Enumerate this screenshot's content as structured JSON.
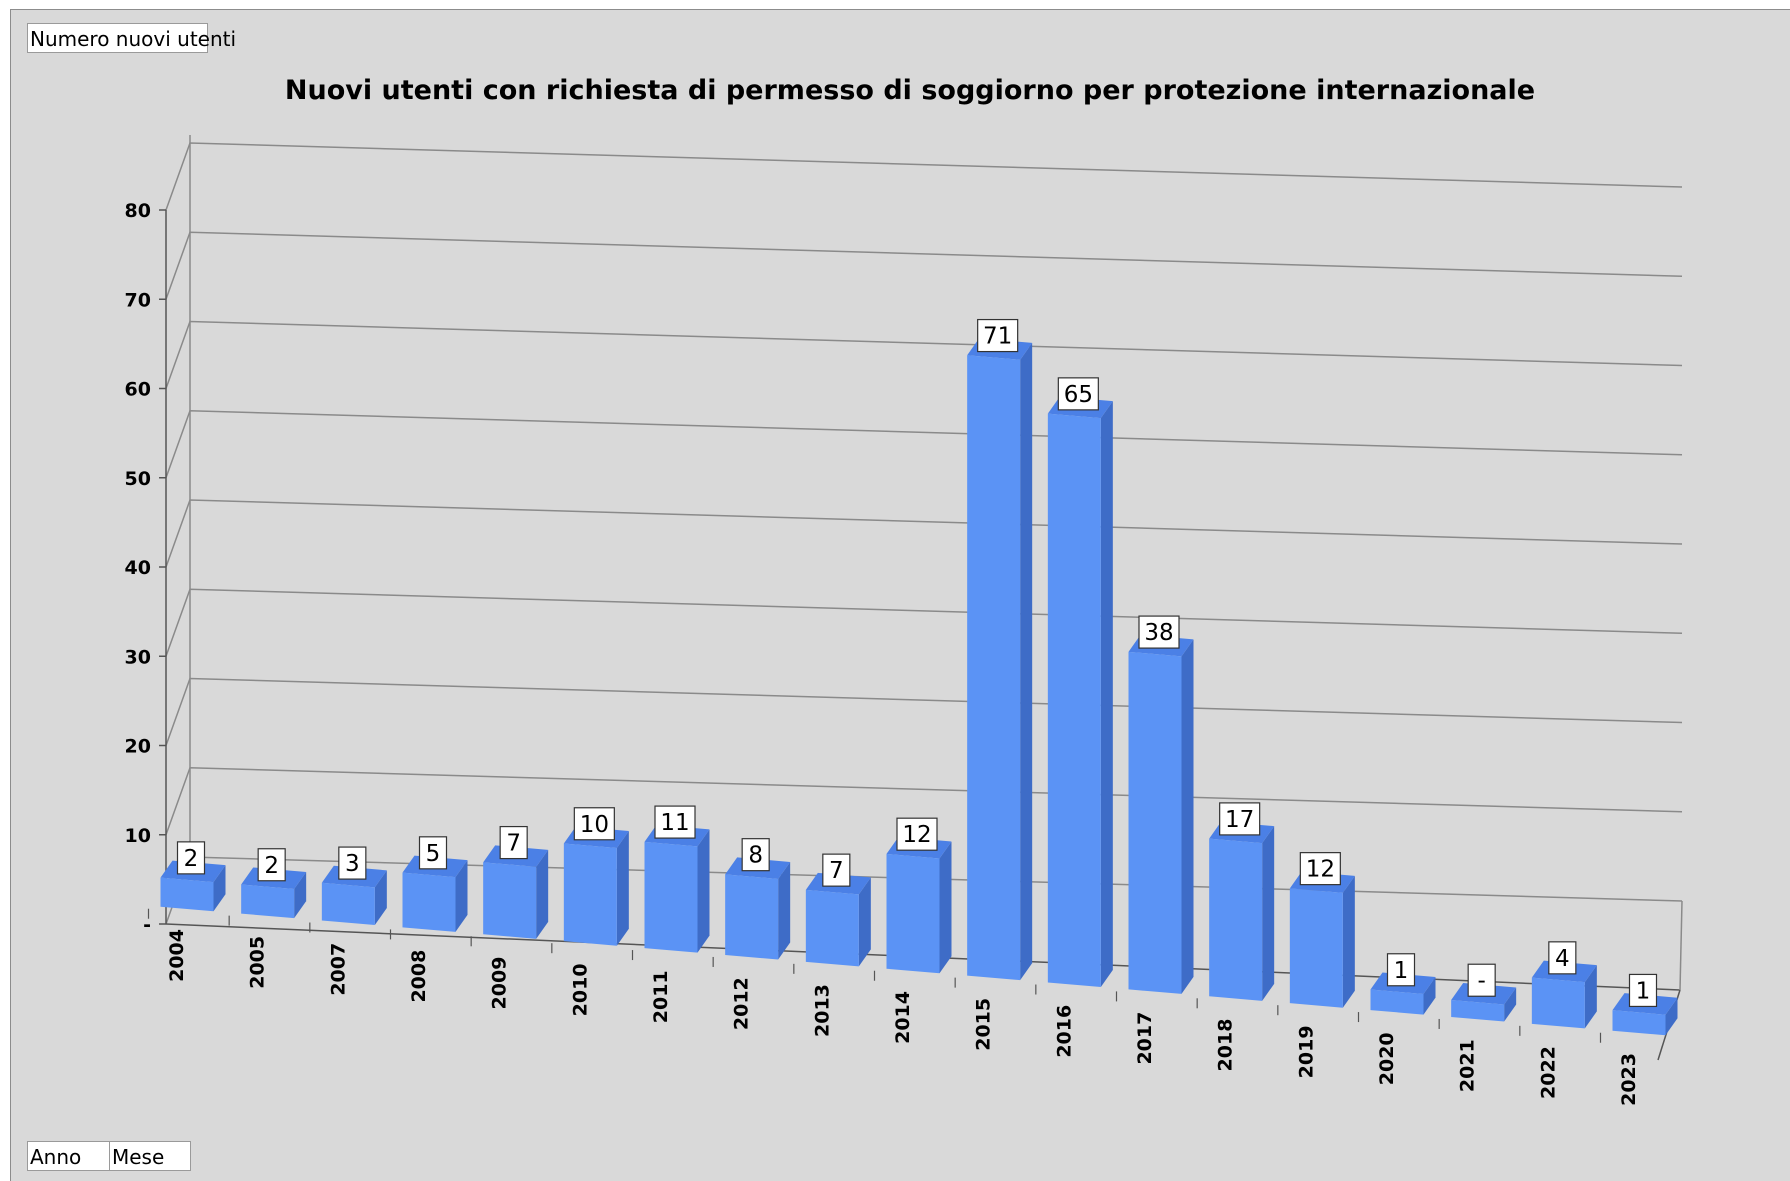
{
  "pivot": {
    "data_field": "Numero nuovi utenti",
    "row_fields": [
      "Anno",
      "Mese"
    ]
  },
  "colors": {
    "background": "#d9d9d9",
    "bar_front": "#5b93f5",
    "bar_side": "#3e6cc7",
    "bar_top": "#4b80e6",
    "grid": "#8a8a8a"
  },
  "chart_data": {
    "type": "bar",
    "title": "Nuovi utenti con richiesta di permesso di soggiorno per protezione internazionale",
    "categories": [
      "2004",
      "2005",
      "2007",
      "2008",
      "2009",
      "2010",
      "2011",
      "2012",
      "2013",
      "2014",
      "2015",
      "2016",
      "2017",
      "2018",
      "2019",
      "2020",
      "2021",
      "2022",
      "2023"
    ],
    "values": [
      2,
      2,
      3,
      5,
      7,
      10,
      11,
      8,
      7,
      12,
      71,
      65,
      38,
      17,
      12,
      1,
      0,
      4,
      1
    ],
    "data_labels": [
      "2",
      "2",
      "3",
      "5",
      "7",
      "10",
      "11",
      "8",
      "7",
      "12",
      "71",
      "65",
      "38",
      "17",
      "12",
      "1",
      "-",
      "4",
      "1"
    ],
    "yticks": [
      "-",
      "10",
      "20",
      "30",
      "40",
      "50",
      "60",
      "70",
      "80"
    ],
    "ylim": [
      0,
      80
    ],
    "grid": true,
    "legend": "none",
    "three_d": true
  }
}
